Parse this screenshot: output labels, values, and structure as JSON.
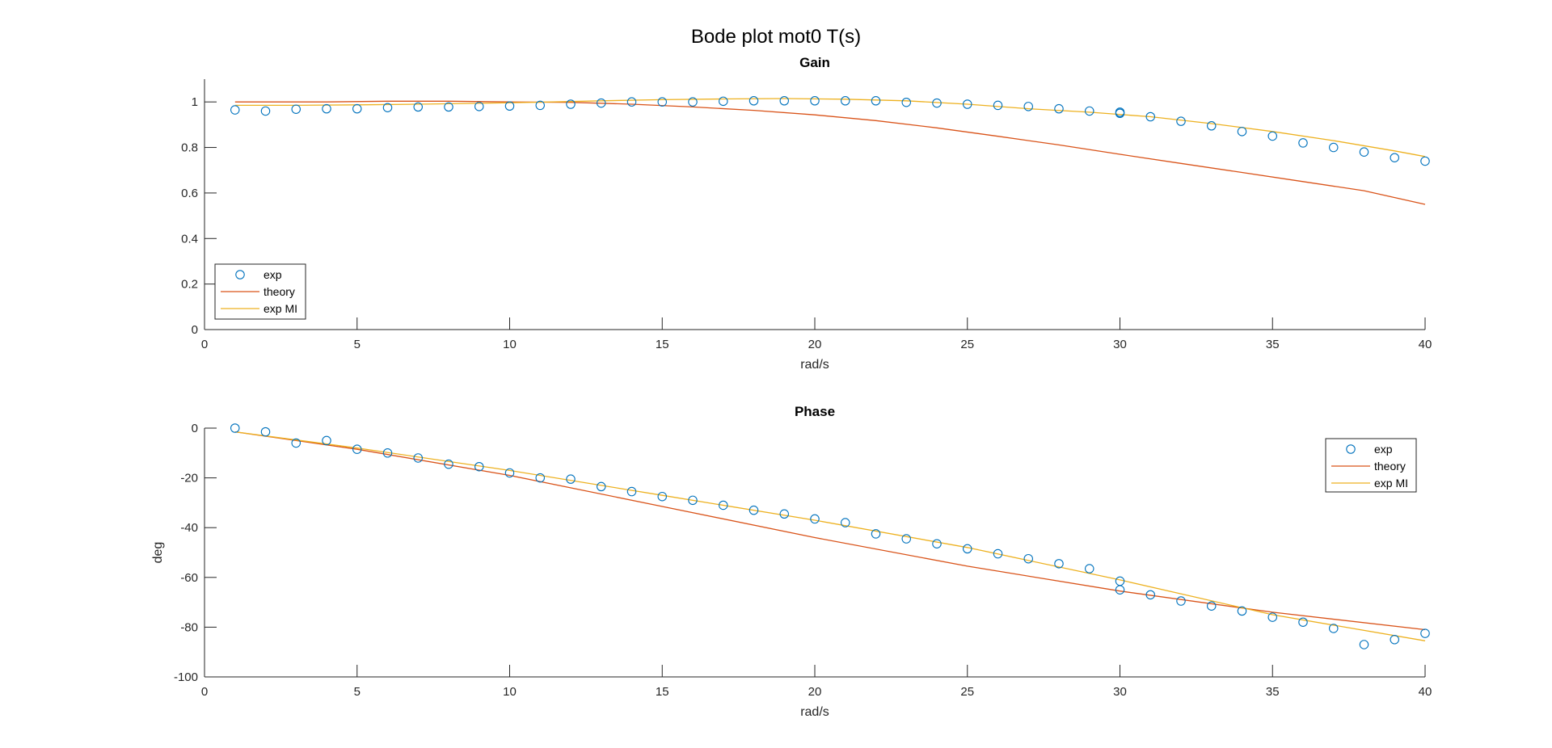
{
  "figure": {
    "title": "Bode plot mot0 T(s)"
  },
  "colors": {
    "exp": "#0072BD",
    "theory": "#D95319",
    "exp_mi": "#EDB120",
    "axis": "#262626"
  },
  "chart_data": [
    {
      "type": "line",
      "title": "Gain",
      "xlabel": "rad/s",
      "ylabel": "",
      "xlim": [
        0,
        40
      ],
      "ylim": [
        0,
        1.1
      ],
      "xticks": [
        0,
        5,
        10,
        15,
        20,
        25,
        30,
        35,
        40
      ],
      "yticks": [
        0,
        0.2,
        0.4,
        0.6,
        0.8,
        1
      ],
      "legend": {
        "position": "bottom-left",
        "entries": [
          "exp",
          "theory",
          "exp MI"
        ]
      },
      "series": [
        {
          "name": "exp",
          "style": "markers",
          "x": [
            1,
            2,
            3,
            4,
            5,
            6,
            7,
            8,
            9,
            10,
            11,
            12,
            13,
            14,
            15,
            16,
            17,
            18,
            19,
            20,
            21,
            22,
            23,
            24,
            25,
            26,
            27,
            28,
            29,
            30,
            30,
            31,
            32,
            33,
            34,
            35,
            36,
            37,
            38,
            39,
            40
          ],
          "y": [
            0.965,
            0.96,
            0.968,
            0.97,
            0.97,
            0.975,
            0.978,
            0.978,
            0.98,
            0.982,
            0.985,
            0.99,
            0.995,
            1.0,
            1.0,
            1.0,
            1.003,
            1.005,
            1.005,
            1.005,
            1.005,
            1.005,
            0.998,
            0.995,
            0.99,
            0.985,
            0.98,
            0.97,
            0.96,
            0.955,
            0.95,
            0.935,
            0.915,
            0.895,
            0.87,
            0.85,
            0.82,
            0.8,
            0.78,
            0.755,
            0.74
          ]
        },
        {
          "name": "theory",
          "style": "line",
          "x": [
            1,
            2,
            4,
            6,
            8,
            10,
            12,
            14,
            16,
            18,
            20,
            22,
            24,
            26,
            28,
            30,
            32,
            34,
            36,
            38,
            40
          ],
          "y": [
            1.0,
            1.0,
            1.0,
            1.003,
            1.003,
            1.0,
            0.998,
            0.99,
            0.978,
            0.963,
            0.943,
            0.918,
            0.886,
            0.849,
            0.811,
            0.77,
            0.73,
            0.69,
            0.65,
            0.61,
            0.55
          ]
        },
        {
          "name": "exp MI",
          "style": "line",
          "x": [
            1,
            3,
            5,
            7,
            9,
            11,
            13,
            15,
            17,
            19,
            21,
            23,
            25,
            27,
            29,
            31,
            33,
            35,
            37,
            39,
            40
          ],
          "y": [
            0.985,
            0.985,
            0.987,
            0.99,
            0.994,
            0.999,
            1.005,
            1.01,
            1.013,
            1.015,
            1.012,
            1.005,
            0.99,
            0.97,
            0.955,
            0.935,
            0.905,
            0.87,
            0.83,
            0.785,
            0.76
          ]
        }
      ]
    },
    {
      "type": "line",
      "title": "Phase",
      "xlabel": "rad/s",
      "ylabel": "deg",
      "xlim": [
        0,
        40
      ],
      "ylim": [
        -100,
        0
      ],
      "xticks": [
        0,
        5,
        10,
        15,
        20,
        25,
        30,
        35,
        40
      ],
      "yticks": [
        -100,
        -80,
        -60,
        -40,
        -20,
        0
      ],
      "legend": {
        "position": "top-right",
        "entries": [
          "exp",
          "theory",
          "exp MI"
        ]
      },
      "series": [
        {
          "name": "exp",
          "style": "markers",
          "x": [
            1,
            2,
            3,
            4,
            5,
            6,
            7,
            8,
            9,
            10,
            11,
            12,
            13,
            14,
            15,
            16,
            17,
            18,
            19,
            20,
            21,
            22,
            23,
            24,
            25,
            26,
            27,
            28,
            29,
            30,
            30,
            31,
            32,
            33,
            34,
            35,
            36,
            37,
            38,
            39,
            40
          ],
          "y": [
            0,
            -1.5,
            -6,
            -5,
            -8.5,
            -10,
            -12,
            -14.5,
            -15.5,
            -18,
            -20,
            -20.5,
            -23.5,
            -25.5,
            -27.5,
            -29,
            -31,
            -33,
            -34.5,
            -36.5,
            -38,
            -42.5,
            -44.5,
            -46.5,
            -48.5,
            -50.5,
            -52.5,
            -54.5,
            -56.5,
            -61.5,
            -65,
            -67,
            -69.5,
            -71.5,
            -73.5,
            -76,
            -78,
            -80.5,
            -87,
            -85,
            -82.5
          ]
        },
        {
          "name": "theory",
          "style": "line",
          "x": [
            1,
            5,
            10,
            15,
            20,
            25,
            30,
            35,
            40
          ],
          "y": [
            -1.5,
            -8.5,
            -19,
            -31.5,
            -44,
            -55.5,
            -65.5,
            -74,
            -81
          ]
        },
        {
          "name": "exp MI",
          "style": "line",
          "x": [
            1,
            5,
            10,
            15,
            20,
            25,
            30,
            35,
            40
          ],
          "y": [
            -1.5,
            -8,
            -17,
            -27,
            -37,
            -48,
            -61,
            -75,
            -85.5
          ]
        }
      ]
    }
  ]
}
